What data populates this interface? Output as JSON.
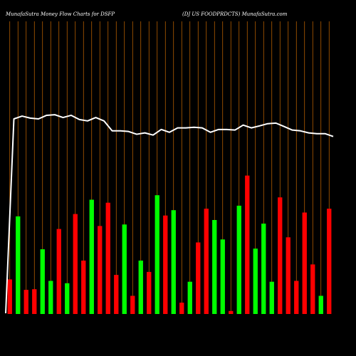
{
  "header": {
    "left": "MunafaSutra  Money Flow  Charts for DSFP",
    "right": "(DJ US FOODPRDCTS) MunafaSutra.com"
  },
  "colors": {
    "background": "#000000",
    "up": "#00ff00",
    "down": "#ff0000",
    "line": "#ffffff",
    "grid": "#cc6a00",
    "text": "#ffffff"
  },
  "chart_data": {
    "type": "bar",
    "title": "",
    "xlabel": "",
    "ylabel": "",
    "grid": true,
    "legend": "none",
    "ylim": [
      0,
      100
    ],
    "line_ylim": [
      0,
      100
    ],
    "bars": [
      {
        "value": 16.2,
        "color": "red"
      },
      {
        "value": 45.7,
        "color": "green"
      },
      {
        "value": 11.3,
        "color": "red"
      },
      {
        "value": 11.6,
        "color": "red"
      },
      {
        "value": 30.3,
        "color": "green"
      },
      {
        "value": 15.5,
        "color": "green"
      },
      {
        "value": 39.8,
        "color": "red"
      },
      {
        "value": 14.4,
        "color": "green"
      },
      {
        "value": 46.8,
        "color": "red"
      },
      {
        "value": 25.0,
        "color": "red"
      },
      {
        "value": 53.5,
        "color": "green"
      },
      {
        "value": 41.2,
        "color": "red"
      },
      {
        "value": 52.1,
        "color": "red"
      },
      {
        "value": 18.3,
        "color": "red"
      },
      {
        "value": 41.9,
        "color": "green"
      },
      {
        "value": 8.5,
        "color": "red"
      },
      {
        "value": 25.0,
        "color": "green"
      },
      {
        "value": 19.7,
        "color": "red"
      },
      {
        "value": 55.6,
        "color": "green"
      },
      {
        "value": 46.1,
        "color": "red"
      },
      {
        "value": 48.6,
        "color": "green"
      },
      {
        "value": 5.3,
        "color": "red"
      },
      {
        "value": 15.1,
        "color": "green"
      },
      {
        "value": 33.5,
        "color": "red"
      },
      {
        "value": 49.3,
        "color": "red"
      },
      {
        "value": 44.0,
        "color": "green"
      },
      {
        "value": 34.9,
        "color": "green"
      },
      {
        "value": 1.4,
        "color": "red"
      },
      {
        "value": 50.7,
        "color": "green"
      },
      {
        "value": 64.8,
        "color": "red"
      },
      {
        "value": 30.6,
        "color": "green"
      },
      {
        "value": 42.3,
        "color": "green"
      },
      {
        "value": 15.1,
        "color": "green"
      },
      {
        "value": 54.6,
        "color": "red"
      },
      {
        "value": 35.9,
        "color": "red"
      },
      {
        "value": 15.5,
        "color": "red"
      },
      {
        "value": 47.5,
        "color": "red"
      },
      {
        "value": 23.2,
        "color": "red"
      },
      {
        "value": 8.5,
        "color": "green"
      },
      {
        "value": 49.3,
        "color": "red"
      }
    ],
    "line": [
      0,
      97.5,
      98.9,
      97.9,
      97.5,
      99.3,
      99.6,
      98.2,
      99.3,
      97.2,
      96.5,
      98.2,
      96.5,
      91.5,
      91.5,
      91.2,
      89.8,
      90.5,
      89.4,
      92.2,
      90.8,
      93.0,
      93.0,
      93.3,
      93.0,
      90.8,
      92.2,
      92.2,
      91.9,
      94.4,
      93.0,
      94.0,
      95.1,
      95.4,
      93.7,
      91.9,
      91.5,
      90.5,
      90.1,
      90.1,
      88.7
    ]
  }
}
